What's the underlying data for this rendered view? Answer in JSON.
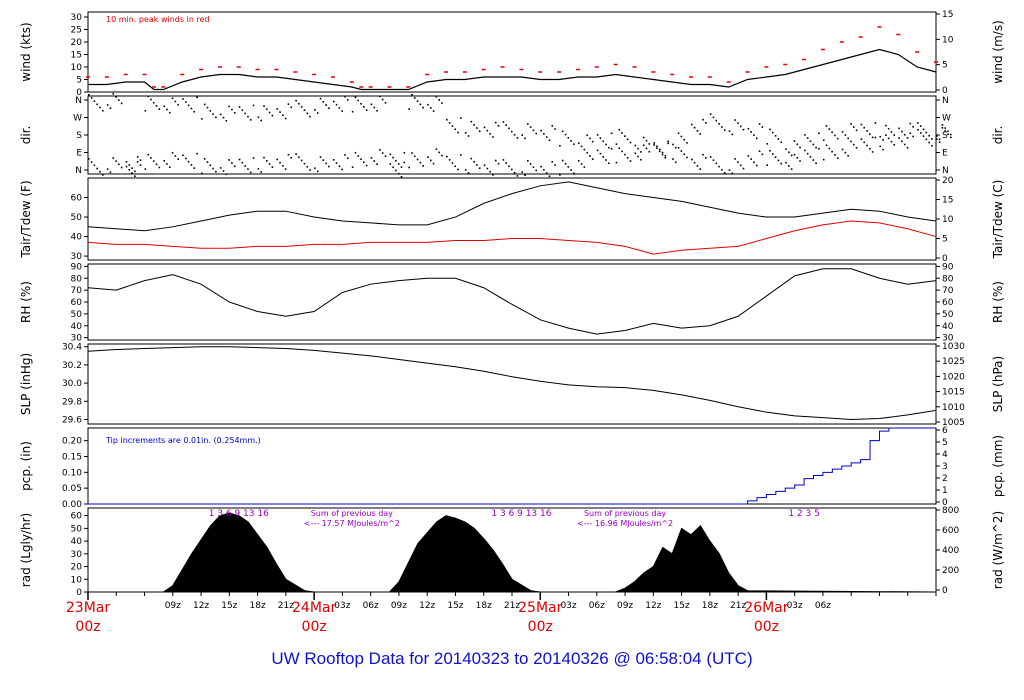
{
  "title": "UW Rooftop Data for 20140323  to  20140326 @ 06:58:04  (UTC)",
  "colors": {
    "title": "#1010d0",
    "date": "#e00000",
    "peak": "#e00000",
    "dew": "#e00000",
    "pcp": "#0000cc",
    "note": "#9900cc"
  },
  "chart_data": [
    {
      "type": "line",
      "panel": "wind",
      "ylabel": "wind (kts)",
      "ylabel_right": "wind (m/s)",
      "ylim": [
        0,
        32
      ],
      "yticks": [
        0,
        5,
        10,
        15,
        20,
        25,
        30
      ],
      "yticks_right": [
        0,
        5,
        10,
        15
      ],
      "annotation": "10 min. peak winds in red",
      "x": [
        0,
        2,
        4,
        6,
        7,
        8,
        10,
        12,
        14,
        16,
        18,
        20,
        22,
        24,
        26,
        28,
        29,
        30,
        32,
        34,
        36,
        38,
        40,
        42,
        44,
        46,
        48,
        50,
        52,
        54,
        56,
        58,
        60,
        62,
        64,
        66,
        68,
        70,
        72,
        74,
        76,
        78,
        80,
        82,
        84,
        86,
        88,
        90
      ],
      "series": [
        {
          "name": "wind",
          "values": [
            3,
            3,
            4,
            4,
            1,
            1,
            4,
            6,
            7,
            7,
            6,
            6,
            5,
            4,
            3,
            2,
            1,
            1,
            1,
            1,
            4,
            5,
            5,
            6,
            6,
            6,
            5,
            5,
            6,
            6,
            7,
            6,
            5,
            4,
            3,
            3,
            2,
            5,
            6,
            7,
            9,
            11,
            13,
            15,
            17,
            15,
            10,
            8
          ]
        },
        {
          "name": "peak",
          "values": [
            6,
            6,
            7,
            7,
            2,
            2,
            7,
            9,
            10,
            10,
            9,
            9,
            8,
            7,
            6,
            4,
            2,
            2,
            2,
            2,
            7,
            8,
            8,
            9,
            10,
            9,
            8,
            8,
            9,
            10,
            11,
            10,
            8,
            7,
            6,
            6,
            4,
            8,
            10,
            11,
            13,
            17,
            20,
            22,
            26,
            23,
            16,
            12
          ]
        }
      ]
    },
    {
      "type": "scatter",
      "panel": "direction",
      "ylabel": "dir.",
      "ylabel_right": "dir.",
      "yticks": [
        "N",
        "W",
        "S",
        "E",
        "N"
      ],
      "x": [
        0,
        2,
        4,
        6,
        8,
        10,
        12,
        14,
        16,
        18,
        20,
        22,
        24,
        26,
        28,
        30,
        32,
        34,
        36,
        38,
        40,
        42,
        44,
        46,
        48,
        50,
        52,
        54,
        56,
        58,
        60,
        62,
        64,
        66,
        68,
        70,
        72,
        74,
        76,
        78,
        80,
        82,
        84,
        86,
        88,
        90
      ],
      "series": [
        {
          "name": "dir",
          "values": [
            350,
            355,
            5,
            350,
            340,
            345,
            300,
            290,
            295,
            300,
            310,
            320,
            330,
            340,
            345,
            350,
            10,
            350,
            340,
            230,
            220,
            215,
            210,
            200,
            190,
            170,
            150,
            160,
            170,
            130,
            110,
            160,
            230,
            250,
            220,
            200,
            180,
            120,
            160,
            190,
            200,
            205,
            200,
            210,
            205,
            195
          ]
        },
        {
          "name": "dir-low",
          "values": [
            20,
            25,
            30,
            50,
            60,
            55,
            20,
            15,
            25,
            35,
            50,
            45,
            30,
            40,
            60,
            75,
            60,
            50,
            70,
            40,
            30,
            20,
            15,
            10,
            5,
            20,
            60,
            80,
            75,
            90,
            100,
            85,
            50,
            30,
            20,
            60,
            70,
            50,
            80,
            90,
            110,
            130,
            150,
            160,
            170,
            180
          ]
        }
      ]
    },
    {
      "type": "line",
      "panel": "temperature",
      "ylabel": "Tair/Tdew (F)",
      "ylabel_right": "Tair/Tdew (C)",
      "ylim": [
        28,
        70
      ],
      "yticks": [
        30,
        40,
        50,
        60
      ],
      "yticks_right": [
        0,
        5,
        10,
        15,
        20
      ],
      "x": [
        0,
        3,
        6,
        9,
        12,
        15,
        18,
        21,
        24,
        27,
        30,
        33,
        36,
        39,
        42,
        45,
        48,
        51,
        54,
        57,
        60,
        63,
        66,
        69,
        72,
        75,
        78,
        81,
        84,
        87,
        90
      ],
      "series": [
        {
          "name": "Tair",
          "values": [
            45,
            44,
            43,
            45,
            48,
            51,
            53,
            53,
            50,
            48,
            47,
            46,
            46,
            50,
            57,
            62,
            66,
            68,
            65,
            62,
            60,
            58,
            55,
            52,
            50,
            50,
            52,
            54,
            53,
            50,
            48
          ]
        },
        {
          "name": "Tdew",
          "values": [
            37,
            36,
            36,
            35,
            34,
            34,
            35,
            35,
            36,
            36,
            37,
            37,
            37,
            38,
            38,
            39,
            39,
            38,
            37,
            35,
            31,
            33,
            34,
            35,
            39,
            43,
            46,
            48,
            47,
            44,
            40
          ]
        }
      ]
    },
    {
      "type": "line",
      "panel": "rh",
      "ylabel": "RH (%)",
      "ylabel_right": "RH (%)",
      "ylim": [
        28,
        92
      ],
      "yticks": [
        30,
        40,
        50,
        60,
        70,
        80,
        90
      ],
      "x": [
        0,
        3,
        6,
        9,
        12,
        15,
        18,
        21,
        24,
        27,
        30,
        33,
        36,
        39,
        42,
        45,
        48,
        51,
        54,
        57,
        60,
        63,
        66,
        69,
        72,
        75,
        78,
        81,
        84,
        87,
        90
      ],
      "series": [
        {
          "name": "RH",
          "values": [
            72,
            70,
            78,
            83,
            75,
            60,
            52,
            48,
            52,
            68,
            75,
            78,
            80,
            80,
            72,
            58,
            45,
            38,
            33,
            36,
            42,
            38,
            40,
            48,
            65,
            82,
            88,
            88,
            80,
            75,
            78
          ]
        }
      ]
    },
    {
      "type": "line",
      "panel": "slp",
      "ylabel": "SLP (inHg)",
      "ylabel_right": "SLP (hPa)",
      "ylim": [
        29.55,
        30.43
      ],
      "yticks": [
        29.6,
        29.8,
        30.0,
        30.2,
        30.4
      ],
      "yticks_right": [
        1005,
        1010,
        1015,
        1020,
        1025,
        1030
      ],
      "x": [
        0,
        3,
        6,
        9,
        12,
        15,
        18,
        21,
        24,
        27,
        30,
        33,
        36,
        39,
        42,
        45,
        48,
        51,
        54,
        57,
        60,
        63,
        66,
        69,
        72,
        75,
        78,
        81,
        84,
        87,
        90
      ],
      "series": [
        {
          "name": "SLP",
          "values": [
            30.35,
            30.37,
            30.38,
            30.39,
            30.4,
            30.4,
            30.39,
            30.38,
            30.36,
            30.33,
            30.3,
            30.26,
            30.22,
            30.18,
            30.13,
            30.07,
            30.02,
            29.98,
            29.96,
            29.95,
            29.92,
            29.87,
            29.81,
            29.74,
            29.68,
            29.64,
            29.62,
            29.6,
            29.61,
            29.65,
            29.7
          ]
        }
      ]
    },
    {
      "type": "line",
      "panel": "precip",
      "ylabel": "pcp. (in)",
      "ylabel_right": "pcp. (mm)",
      "ylim": [
        0,
        0.24
      ],
      "yticks": [
        0.0,
        0.05,
        0.1,
        0.15,
        0.2
      ],
      "yticks_right": [
        0,
        1,
        2,
        3,
        4,
        5,
        6
      ],
      "annotation": "Tip increments are 0.01in. (0.254mm.)",
      "x": [
        0,
        69,
        70,
        71,
        72,
        73,
        74,
        75,
        76,
        77,
        78,
        79,
        80,
        81,
        82,
        83,
        84,
        85,
        86,
        90
      ],
      "series": [
        {
          "name": "pcp",
          "values": [
            0,
            0,
            0.01,
            0.02,
            0.03,
            0.04,
            0.05,
            0.06,
            0.08,
            0.09,
            0.1,
            0.11,
            0.12,
            0.13,
            0.14,
            0.2,
            0.23,
            0.24,
            0.24,
            0.24
          ]
        }
      ]
    },
    {
      "type": "area",
      "panel": "radiation",
      "ylabel": "rad (Lgly/hr)",
      "ylabel_right": "rad (W/m^2)",
      "ylim": [
        0,
        66
      ],
      "yticks": [
        0,
        10,
        20,
        30,
        40,
        50,
        60
      ],
      "yticks_right": [
        0,
        200,
        400,
        600,
        800
      ],
      "x": [
        0,
        8,
        9,
        11,
        13,
        14,
        15,
        16,
        17,
        18,
        19,
        20,
        21,
        23,
        24,
        32,
        33,
        35,
        37,
        38,
        39,
        40,
        41,
        42,
        43,
        44,
        45,
        47,
        48,
        56,
        57,
        58,
        59,
        60,
        61,
        62,
        63,
        64,
        65,
        66,
        67,
        68,
        69,
        70,
        90
      ],
      "series": [
        {
          "name": "rad",
          "values": [
            0,
            0,
            5,
            30,
            52,
            60,
            62,
            60,
            55,
            45,
            35,
            22,
            10,
            1,
            0,
            0,
            8,
            38,
            55,
            60,
            58,
            55,
            50,
            42,
            33,
            22,
            10,
            1,
            0,
            0,
            3,
            8,
            15,
            20,
            35,
            30,
            50,
            45,
            52,
            40,
            30,
            15,
            5,
            1,
            0
          ]
        }
      ],
      "marks": [
        {
          "text": "1  3  6  9  13  16",
          "x": 16
        },
        {
          "text": "1  3  6  9  13  16",
          "x": 46
        },
        {
          "text": "1  2  3  5",
          "x": 76
        }
      ],
      "notes": [
        {
          "lines": [
            "Sum of previous day",
            "<--- 17.57 MJoules/m^2"
          ],
          "x": 28
        },
        {
          "lines": [
            "Sum of previous day",
            "<--- 16.96 MJoules/m^2"
          ],
          "x": 57
        }
      ]
    }
  ],
  "x_axis": {
    "hours_label": [
      "09z",
      "12z",
      "15z",
      "18z",
      "21z",
      "03z",
      "06z",
      "09z",
      "12z",
      "15z",
      "18z",
      "21z",
      "03z",
      "06z",
      "09z",
      "12z",
      "15z",
      "18z",
      "21z",
      "03z",
      "06z"
    ],
    "hours_x": [
      9,
      12,
      15,
      18,
      21,
      27,
      30,
      33,
      36,
      39,
      42,
      45,
      51,
      54,
      57,
      60,
      63,
      66,
      69,
      75,
      78
    ],
    "dates": [
      {
        "label": "23Mar",
        "sub": "00z",
        "x": 0
      },
      {
        "label": "24Mar",
        "sub": "00z",
        "x": 24
      },
      {
        "label": "25Mar",
        "sub": "00z",
        "x": 48
      },
      {
        "label": "26Mar",
        "sub": "00z",
        "x": 72
      }
    ]
  }
}
